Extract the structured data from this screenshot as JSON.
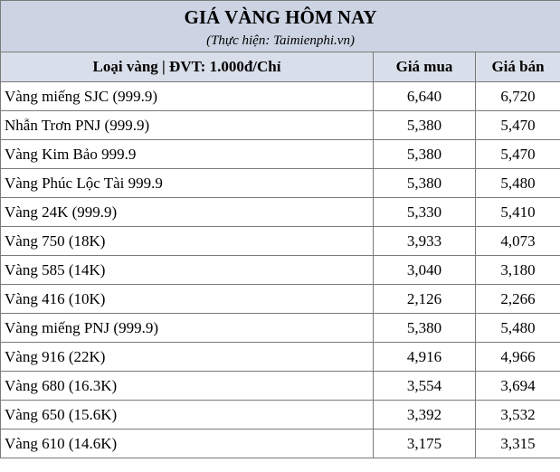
{
  "header": {
    "title": "GIÁ VÀNG HÔM NAY",
    "subtitle": "(Thực hiện: Taimienphi.vn)"
  },
  "table": {
    "columns": [
      "Loại vàng | ĐVT: 1.000đ/Chỉ",
      "Giá mua",
      "Giá bán"
    ],
    "rows": [
      [
        "Vàng miếng SJC (999.9)",
        "6,640",
        "6,720"
      ],
      [
        "Nhẫn Trơn PNJ (999.9)",
        "5,380",
        "5,470"
      ],
      [
        "Vàng Kim Bảo 999.9",
        "5,380",
        "5,470"
      ],
      [
        "Vàng Phúc Lộc Tài 999.9",
        "5,380",
        "5,480"
      ],
      [
        "Vàng 24K (999.9)",
        "5,330",
        "5,410"
      ],
      [
        "Vàng 750 (18K)",
        "3,933",
        "4,073"
      ],
      [
        "Vàng 585 (14K)",
        "3,040",
        "3,180"
      ],
      [
        "Vàng 416 (10K)",
        "2,126",
        "2,266"
      ],
      [
        "Vàng miếng PNJ (999.9)",
        "5,380",
        "5,480"
      ],
      [
        "Vàng 916 (22K)",
        "4,916",
        "4,966"
      ],
      [
        "Vàng 680 (16.3K)",
        "3,554",
        "3,694"
      ],
      [
        "Vàng 650 (15.6K)",
        "3,392",
        "3,532"
      ],
      [
        "Vàng 610 (14.6K)",
        "3,175",
        "3,315"
      ]
    ]
  }
}
